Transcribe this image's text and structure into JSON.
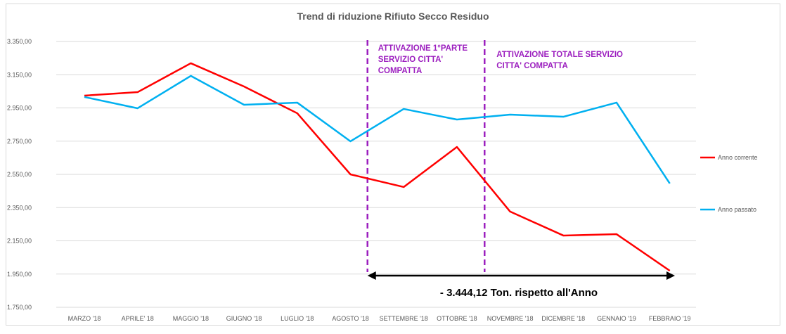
{
  "chart_data": {
    "type": "line",
    "title": "Trend di riduzione Rifiuto Secco Residuo",
    "categories": [
      "MARZO '18",
      "APRILE' 18",
      "MAGGIO '18",
      "GIUGNO '18",
      "LUGLIO '18",
      "AGOSTO '18",
      "SETTEMBRE '18",
      "OTTOBRE '18",
      "NOVEMBRE '18",
      "DICEMBRE '18",
      "GENNAIO '19",
      "FEBBRAIO '19"
    ],
    "series": [
      {
        "name": "Anno corrente",
        "color": "#ff0000",
        "values": [
          3024,
          3045,
          3219,
          3079,
          2918,
          2550,
          2474,
          2715,
          2326,
          2182,
          2190,
          1970
        ]
      },
      {
        "name": "Anno passato",
        "color": "#00b0f0",
        "values": [
          3016,
          2948,
          3143,
          2969,
          2982,
          2749,
          2944,
          2880,
          2910,
          2897,
          2982,
          2495
        ]
      }
    ],
    "ylim": [
      1750,
      3350
    ],
    "yticks": [
      "3.350,00",
      "3.150,00",
      "2.950,00",
      "2.750,00",
      "2.550,00",
      "2.350,00",
      "2.150,00",
      "1.950,00",
      "1.750,00"
    ],
    "grid": true,
    "legend_placement": "right",
    "annotations": {
      "first_activation": [
        "ATTIVAZIONE 1°PARTE",
        "SERVIZIO CITTA'",
        "COMPATTA"
      ],
      "total_activation": [
        "ATTIVAZIONE TOTALE SERVIZIO",
        "CITTA' COMPATTA"
      ],
      "annotation_color": "#9c1fbf",
      "reduction_label": "- 3.444,12 Ton. rispetto all'Anno"
    }
  }
}
